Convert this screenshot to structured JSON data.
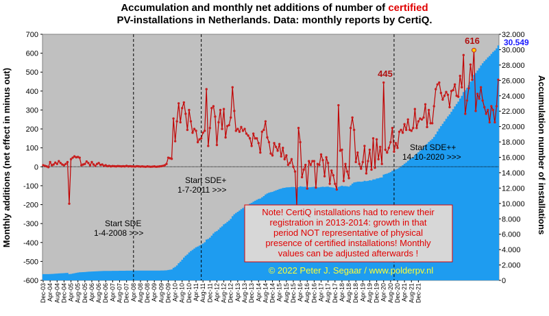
{
  "title_line1_pre": "Accumulation  and  monthly net additions of number of ",
  "title_highlight": "certified",
  "title_line2": "PV-installations  in  Netherlands.  Data:  monthly reports by CertiQ.",
  "colors": {
    "plot_bg": "#c0c0c0",
    "area": "#1e9cf0",
    "line": "#c00000",
    "marker": "#c81e1e",
    "note_border": "#e00000",
    "copyright": "#ffff33",
    "last_value": "#1a1aff"
  },
  "chart_data": {
    "type": "line",
    "title": "Accumulation and monthly net additions of number of certified PV-installations in Netherlands. Data: monthly reports by CertiQ.",
    "ylabel": "Monthly additions (net effect in minus out)",
    "y2label": "Accumulation number of installations",
    "ylim": [
      -600,
      700
    ],
    "y2lim": [
      0,
      32000
    ],
    "y_ticks": [
      "700",
      "600",
      "500",
      "400",
      "300",
      "200",
      "100",
      "0",
      "-100",
      "-200",
      "-300",
      "-400",
      "-500",
      "-600"
    ],
    "y2_ticks": [
      "32.000",
      "30.000",
      "28.000",
      "26.000",
      "24.000",
      "22.000",
      "20.000",
      "18.000",
      "16.000",
      "14.000",
      "12.000",
      "10.000",
      "8.000",
      "6.000",
      "4.000",
      "2.000",
      "0"
    ],
    "x_ticks": [
      "Dec-03",
      "Apr-04",
      "Aug-04",
      "Dec-04",
      "Apr-05",
      "Aug-05",
      "Dec-05",
      "Apr-06",
      "Aug-06",
      "Dec-06",
      "Apr-07",
      "Aug-07",
      "Dec-07",
      "Apr-08",
      "Aug-08",
      "Dec-08",
      "Apr-09",
      "Aug-09",
      "Dec-09",
      "Apr-10",
      "Aug-10",
      "Dec-10",
      "Apr-11",
      "Aug-11",
      "Dec-11",
      "Apr-12",
      "Aug-12",
      "Dec-12",
      "Apr-13",
      "Aug-13",
      "Dec-13",
      "Apr-14",
      "Aug-14",
      "Dec-14",
      "Apr-15",
      "Aug-15",
      "Dec-15",
      "Apr-16",
      "Aug-16",
      "Dec-16",
      "Apr-17",
      "Aug-17",
      "Dec-17",
      "Apr-18",
      "Aug-18",
      "Dec-18",
      "Apr-19",
      "Aug-19",
      "Dec-19",
      "Apr-20",
      "Aug-20",
      "Dec-20",
      "Apr-21",
      "Aug-21",
      "Dec-21"
    ],
    "series": [
      {
        "name": "Monthly additions",
        "axis": "left",
        "values": [
          8,
          5,
          2,
          -2,
          25,
          8,
          12,
          22,
          15,
          30,
          20,
          12,
          8,
          15,
          25,
          -195,
          40,
          48,
          55,
          50,
          52,
          48,
          8,
          12,
          15,
          28,
          20,
          8,
          25,
          12,
          5,
          15,
          20,
          10,
          12,
          5,
          8,
          3,
          5,
          2,
          4,
          3,
          2,
          4,
          3,
          2,
          3,
          2,
          5,
          2,
          3,
          2,
          2,
          1,
          3,
          2,
          1,
          2,
          1,
          0,
          2,
          1,
          0,
          1,
          2,
          0,
          1,
          2,
          3,
          5,
          8,
          15,
          48,
          45,
          42,
          255,
          135,
          240,
          335,
          235,
          310,
          340,
          280,
          195,
          300,
          240,
          180,
          200,
          190,
          130,
          145,
          150,
          180,
          190,
          410,
          110,
          205,
          310,
          320,
          265,
          115,
          235,
          300,
          200,
          305,
          155,
          215,
          220,
          260,
          420,
          295,
          190,
          200,
          185,
          210,
          190,
          200,
          175,
          165,
          150,
          110,
          175,
          150,
          150,
          125,
          75,
          185,
          195,
          240,
          155,
          130,
          70,
          60,
          125,
          105,
          85,
          120,
          55,
          100,
          40,
          60,
          10,
          20,
          40,
          0,
          -25,
          -210,
          205,
          130,
          -55,
          -15,
          10,
          -115,
          30,
          10,
          30,
          30,
          -110,
          15,
          10,
          65,
          35,
          -50,
          50,
          20,
          -90,
          -20,
          -45,
          -90,
          -120,
          325,
          85,
          90,
          -75,
          15,
          -25,
          -60,
          205,
          260,
          195,
          25,
          75,
          15,
          -10,
          25,
          110,
          -35,
          30,
          90,
          -15,
          150,
          -5,
          145,
          40,
          105,
          15,
          445,
          90,
          75,
          100,
          130,
          205,
          80,
          125,
          100,
          185,
          195,
          180,
          225,
          195,
          250,
          195,
          190,
          205,
          305,
          205,
          240,
          255,
          250,
          260,
          330,
          210,
          300,
          230,
          230,
          320,
          410,
          435,
          445,
          390,
          355,
          375,
          395,
          380,
          315,
          400,
          405,
          435,
          375,
          370,
          480,
          420,
          590,
          280,
          350,
          415,
          540,
          460,
          616,
          295,
          385,
          360,
          420,
          350,
          315,
          280,
          300,
          235,
          320,
          300,
          235,
          320,
          460
        ]
      },
      {
        "name": "Accumulation",
        "axis": "right",
        "last_value": 30549
      }
    ],
    "annotations": {
      "start_sde_line1": "Start SDE",
      "start_sde_line2": "1-4-2008  >>>",
      "start_sdeplus_line1": "Start SDE+",
      "start_sdeplus_line2": "1-7-2011  >>>",
      "start_sdeplusplus_line1": "Start SDE++",
      "start_sdeplusplus_line2": "14-10-2020  >>>",
      "peak_2017": "445",
      "peak_2020": "616",
      "last_accumulation": "30.549",
      "note_lines": [
        "Note! CertiQ installations had to renew their",
        "registration in 2013-2014:  growth in that",
        "period NOT representative of physical",
        "presence of certified installations! Monthly",
        "values can be adjusted afterwards !"
      ],
      "copyright": "©  2022  Peter  J.  Segaar  /  www.polderpv.nl"
    }
  }
}
